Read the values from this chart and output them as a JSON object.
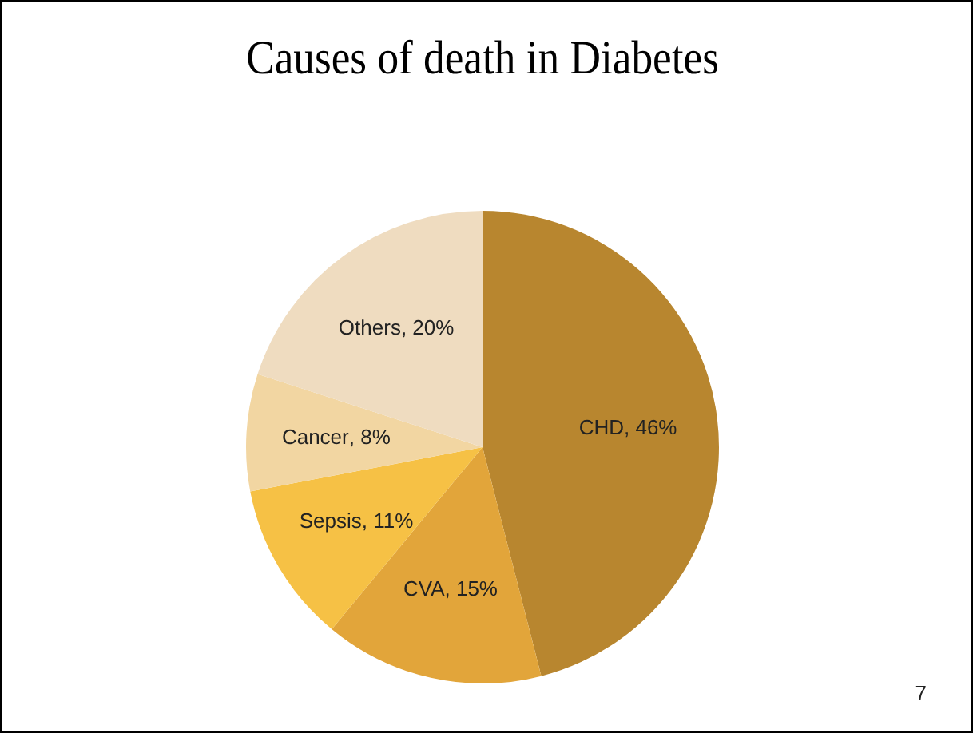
{
  "chart_data": {
    "type": "pie",
    "title": "Causes of death in Diabetes",
    "categories": [
      "CHD",
      "CVA",
      "Sepsis",
      "Cancer",
      "Others"
    ],
    "values": [
      46,
      15,
      11,
      8,
      20
    ],
    "colors": [
      "#b8862f",
      "#e2a53a",
      "#f6c145",
      "#f2d6a2",
      "#efdcc0"
    ],
    "value_labels": [
      ", 46%",
      ", 15%",
      ", 11%",
      ", 8%",
      ", 20%"
    ],
    "legend": false,
    "annotations": [
      "7"
    ]
  }
}
